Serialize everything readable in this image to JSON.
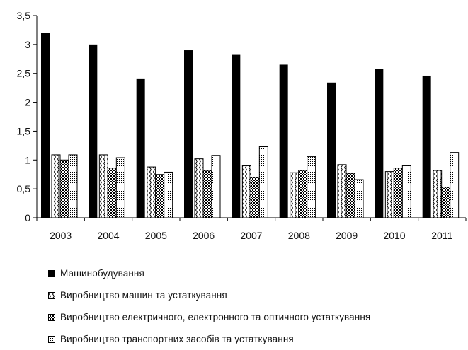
{
  "chart_data": {
    "type": "bar",
    "categories": [
      "2003",
      "2004",
      "2005",
      "2006",
      "2007",
      "2008",
      "2009",
      "2010",
      "2011"
    ],
    "series": [
      {
        "name": "Машинобудування",
        "values": [
          3.2,
          3.0,
          2.4,
          2.9,
          2.82,
          2.65,
          2.34,
          2.58,
          2.46
        ],
        "pattern": "solid",
        "color": "#000000"
      },
      {
        "name": "Виробництво машин та устаткування",
        "values": [
          1.09,
          1.09,
          0.88,
          1.02,
          0.9,
          0.78,
          0.92,
          0.8,
          0.82
        ],
        "pattern": "zigzag",
        "color": "#000000"
      },
      {
        "name": "Виробництво електричного, електронного та оптичного устаткування",
        "values": [
          1.0,
          0.86,
          0.75,
          0.82,
          0.7,
          0.82,
          0.77,
          0.86,
          0.53
        ],
        "pattern": "checker",
        "color": "#000000"
      },
      {
        "name": "Виробництво транспортних засобів та устаткування",
        "values": [
          1.09,
          1.04,
          0.79,
          1.08,
          1.23,
          1.06,
          0.66,
          0.9,
          1.13
        ],
        "pattern": "dots",
        "color": "#000000"
      }
    ],
    "yticks": [
      "0",
      "0,5",
      "1",
      "1,5",
      "2",
      "2,5",
      "3",
      "3,5"
    ],
    "ylim": [
      0,
      3.5
    ],
    "grid": false,
    "legend_position": "bottom",
    "title": "",
    "xlabel": "",
    "ylabel": ""
  }
}
